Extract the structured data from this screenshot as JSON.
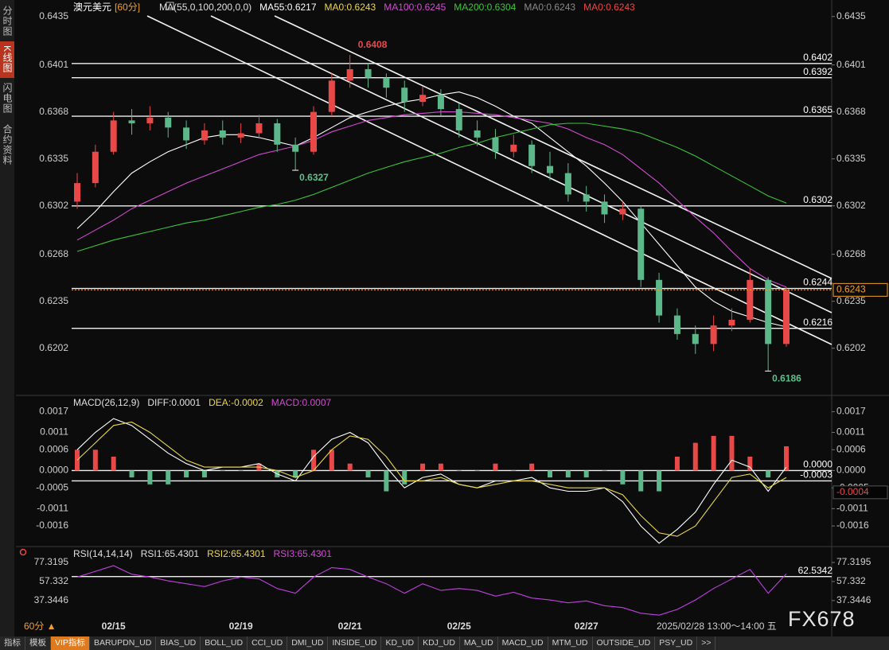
{
  "sidebar": [
    "分时图",
    "K线图",
    "闪电图",
    "合约资料"
  ],
  "chart_data": [
    {
      "type": "candlestick",
      "title": "澳元美元",
      "period": "[60分]",
      "legend": [
        {
          "text": "MA(55,0,100,200,0,0)",
          "color": "#e0e0e0"
        },
        {
          "text": "MA55:0.6217",
          "color": "#ffffff"
        },
        {
          "text": "MA0:0.6243",
          "color": "#e8d84a"
        },
        {
          "text": "MA100:0.6245",
          "color": "#d24ad2"
        },
        {
          "text": "MA200:0.6304",
          "color": "#3cc43c"
        },
        {
          "text": "MA0:0.6243",
          "color": "#8a8a8a"
        },
        {
          "text": "MA0:0.6243",
          "color": "#e84848"
        }
      ],
      "categories": [
        null,
        null,
        "02/15",
        null,
        null,
        null,
        null,
        null,
        null,
        "02/19",
        null,
        null,
        null,
        null,
        null,
        "02/21",
        null,
        null,
        null,
        null,
        null,
        "02/25",
        null,
        null,
        null,
        null,
        null,
        null,
        "02/27",
        null,
        null,
        null,
        null,
        null,
        null,
        null,
        null,
        null,
        null,
        null
      ],
      "open": [
        0.6305,
        0.6318,
        0.634,
        0.6362,
        0.636,
        0.6364,
        0.6357,
        0.6348,
        0.6355,
        0.635,
        0.6353,
        0.636,
        0.6345,
        0.634,
        0.6368,
        0.639,
        0.6398,
        0.6392,
        0.6385,
        0.6375,
        0.638,
        0.637,
        0.6355,
        0.635,
        0.634,
        0.6345,
        0.633,
        0.6325,
        0.631,
        0.6305,
        0.6296,
        0.63,
        0.625,
        0.6225,
        0.6212,
        0.6205,
        0.6218,
        0.6222,
        0.625,
        0.6205
      ],
      "high": [
        0.6325,
        0.6345,
        0.6368,
        0.637,
        0.6372,
        0.6368,
        0.6362,
        0.636,
        0.6362,
        0.636,
        0.6366,
        0.6363,
        0.635,
        0.6372,
        0.6395,
        0.6408,
        0.6402,
        0.6395,
        0.639,
        0.6386,
        0.6384,
        0.6374,
        0.6362,
        0.6356,
        0.6352,
        0.6348,
        0.634,
        0.6332,
        0.6316,
        0.631,
        0.6305,
        0.6302,
        0.6255,
        0.623,
        0.6218,
        0.6225,
        0.623,
        0.6258,
        0.6252,
        0.6245
      ],
      "low": [
        0.63,
        0.6315,
        0.6338,
        0.6352,
        0.6355,
        0.635,
        0.6342,
        0.6345,
        0.6345,
        0.6346,
        0.635,
        0.634,
        0.6327,
        0.6338,
        0.6365,
        0.6385,
        0.6385,
        0.6378,
        0.6368,
        0.6372,
        0.6365,
        0.635,
        0.6344,
        0.6335,
        0.6336,
        0.6325,
        0.632,
        0.6305,
        0.6298,
        0.629,
        0.6292,
        0.6245,
        0.622,
        0.6208,
        0.6198,
        0.62,
        0.6214,
        0.622,
        0.6186,
        0.6203
      ],
      "close": [
        0.6318,
        0.634,
        0.6362,
        0.636,
        0.6364,
        0.6357,
        0.6348,
        0.6355,
        0.635,
        0.6353,
        0.636,
        0.6345,
        0.634,
        0.6368,
        0.639,
        0.6398,
        0.6392,
        0.6385,
        0.6375,
        0.638,
        0.637,
        0.6355,
        0.635,
        0.634,
        0.6345,
        0.633,
        0.6325,
        0.631,
        0.6305,
        0.6296,
        0.63,
        0.625,
        0.6225,
        0.6212,
        0.6205,
        0.6218,
        0.6222,
        0.625,
        0.6205,
        0.6243
      ],
      "up_color": "#e84848",
      "down_color": "#5cb88a",
      "series": [
        {
          "color": "#ffffff",
          "values": [
            0.6286,
            0.6298,
            0.6312,
            0.6325,
            0.6333,
            0.634,
            0.6345,
            0.635,
            0.6352,
            0.6352,
            0.635,
            0.6347,
            0.6344,
            0.635,
            0.6357,
            0.6364,
            0.6368,
            0.6372,
            0.6375,
            0.6377,
            0.638,
            0.6382,
            0.6378,
            0.6372,
            0.6365,
            0.636,
            0.635,
            0.634,
            0.633,
            0.6318,
            0.6305,
            0.629,
            0.6275,
            0.626,
            0.6245,
            0.6235,
            0.6228,
            0.6224,
            0.622,
            0.6217
          ]
        },
        {
          "color": "#d24ad2",
          "values": [
            0.6278,
            0.6285,
            0.6292,
            0.63,
            0.6306,
            0.6312,
            0.6318,
            0.6323,
            0.6328,
            0.6333,
            0.6338,
            0.6341,
            0.6344,
            0.6348,
            0.6354,
            0.6358,
            0.6362,
            0.6364,
            0.6366,
            0.6367,
            0.6368,
            0.6368,
            0.6367,
            0.6366,
            0.6364,
            0.6362,
            0.636,
            0.6356,
            0.635,
            0.6345,
            0.6338,
            0.6328,
            0.6318,
            0.6306,
            0.6294,
            0.6283,
            0.627,
            0.6258,
            0.625,
            0.6245
          ]
        },
        {
          "color": "#3cc43c",
          "values": [
            0.627,
            0.6274,
            0.6278,
            0.6281,
            0.6284,
            0.6287,
            0.629,
            0.6292,
            0.6295,
            0.6298,
            0.6301,
            0.6303,
            0.6306,
            0.631,
            0.6315,
            0.632,
            0.6325,
            0.6329,
            0.6333,
            0.6336,
            0.6339,
            0.6343,
            0.6346,
            0.635,
            0.6353,
            0.6356,
            0.6359,
            0.636,
            0.636,
            0.6358,
            0.6356,
            0.6353,
            0.6348,
            0.6343,
            0.6337,
            0.633,
            0.6323,
            0.6316,
            0.6309,
            0.6304
          ]
        }
      ],
      "levels": [
        0.6402,
        0.6392,
        0.6365,
        0.6302,
        0.6244,
        0.6216
      ],
      "peak": 0.6408,
      "troughs": [
        0.6327,
        0.6186
      ],
      "ylim": [
        0.617,
        0.6441
      ],
      "yticks": [
        0.6435,
        0.6401,
        0.6368,
        0.6335,
        0.6302,
        0.6268,
        0.6235,
        0.6202
      ]
    },
    {
      "type": "macd",
      "legend": [
        {
          "text": "MACD(26,12,9)",
          "color": "#e0e0e0"
        },
        {
          "text": "DIFF:0.0001",
          "color": "#e0e0e0"
        },
        {
          "text": "DEA:-0.0002",
          "color": "#e8d84a"
        },
        {
          "text": "MACD:0.0007",
          "color": "#d24ad2"
        }
      ],
      "series": [
        {
          "color": "#ffffff",
          "values": [
            0.0006,
            0.0011,
            0.0015,
            0.0013,
            0.0009,
            0.0005,
            0.0002,
            0.0,
            0.0001,
            0.0001,
            0.0002,
            -0.0001,
            -0.0003,
            0.0004,
            0.0009,
            0.0011,
            0.0008,
            0.0001,
            -0.0005,
            -0.0002,
            -0.0001,
            -0.0004,
            -0.0005,
            -0.0003,
            -0.0003,
            -0.0002,
            -0.0005,
            -0.0006,
            -0.0006,
            -0.0005,
            -0.0009,
            -0.0016,
            -0.0021,
            -0.0017,
            -0.0012,
            -0.0004,
            0.0003,
            0.0001,
            -0.0006,
            0.0001
          ]
        },
        {
          "color": "#e8d84a",
          "values": [
            0.0003,
            0.0008,
            0.0013,
            0.0014,
            0.0011,
            0.0007,
            0.0003,
            0.0001,
            0.0001,
            0.0001,
            0.0001,
            0.0,
            -0.0002,
            0.0,
            0.0006,
            0.001,
            0.0009,
            0.0004,
            -0.0003,
            -0.0003,
            -0.0002,
            -0.0004,
            -0.0005,
            -0.0004,
            -0.0003,
            -0.0003,
            -0.0004,
            -0.0005,
            -0.0005,
            -0.0005,
            -0.0007,
            -0.0013,
            -0.0018,
            -0.0019,
            -0.0016,
            -0.0009,
            -0.0002,
            -0.0001,
            -0.0005,
            -0.0002
          ]
        }
      ],
      "histogram": [
        0.0006,
        0.0006,
        0.0004,
        -0.0002,
        -0.0004,
        -0.0004,
        -0.0002,
        -0.0002,
        0.0,
        0.0,
        0.0002,
        -0.0002,
        -0.0002,
        0.0006,
        0.0006,
        0.0002,
        -0.0002,
        -0.0006,
        -0.0004,
        0.0002,
        0.0002,
        0.0,
        0.0,
        0.0002,
        0.0,
        0.0002,
        -0.0002,
        -0.0002,
        -0.0002,
        0.0,
        -0.0004,
        -0.0006,
        -0.0006,
        0.0004,
        0.0008,
        0.001,
        0.001,
        0.0004,
        -0.0002,
        0.0007
      ],
      "up_color": "#e84848",
      "down_color": "#5cb88a",
      "levels": [
        {
          "value": 0,
          "label": "0.0000"
        },
        -0.0003
      ],
      "marker": -0.0004,
      "ylim": [
        -0.00215,
        0.0021
      ],
      "yticks": [
        0.0017,
        0.0011,
        0.0006,
        {
          "value": 0,
          "label": "0.0000"
        },
        -0.0005,
        -0.0011,
        -0.0016
      ]
    },
    {
      "type": "line",
      "legend": [
        {
          "text": "RSI(14,14,14)",
          "color": "#e0e0e0"
        },
        {
          "text": "RSI1:65.4301",
          "color": "#e0e0e0"
        },
        {
          "text": "RSI2:65.4301",
          "color": "#e8d84a"
        },
        {
          "text": "RSI3:65.4301",
          "color": "#d24ad2"
        }
      ],
      "series": [
        {
          "color": "#c040e0",
          "values": [
            62,
            68,
            74,
            65,
            62,
            58,
            55,
            52,
            58,
            62,
            60,
            50,
            45,
            62,
            72,
            70,
            62,
            55,
            45,
            55,
            48,
            50,
            48,
            42,
            46,
            40,
            38,
            35,
            37,
            32,
            30,
            24,
            22,
            28,
            38,
            50,
            60,
            70,
            45,
            65.4301
          ]
        }
      ],
      "levels": [
        62.5342
      ],
      "ylim": [
        8,
        91.5
      ],
      "yticks": [
        77.3195,
        57.332,
        37.3446
      ]
    }
  ],
  "footer": {
    "period": "60分 ▲",
    "time": "2025/02/28 13:00～14:00 五",
    "logo": "FX678",
    "tabs": [
      "指标",
      "模板",
      "VIP指标",
      "BARUPDN_UD",
      "BIAS_UD",
      "BOLL_UD",
      "CCI_UD",
      "DMI_UD",
      "INSIDE_UD",
      "KD_UD",
      "KDJ_UD",
      "MA_UD",
      "MACD_UD",
      "MTM_UD",
      "OUTSIDE_UD",
      "PSY_UD",
      ">>"
    ]
  }
}
